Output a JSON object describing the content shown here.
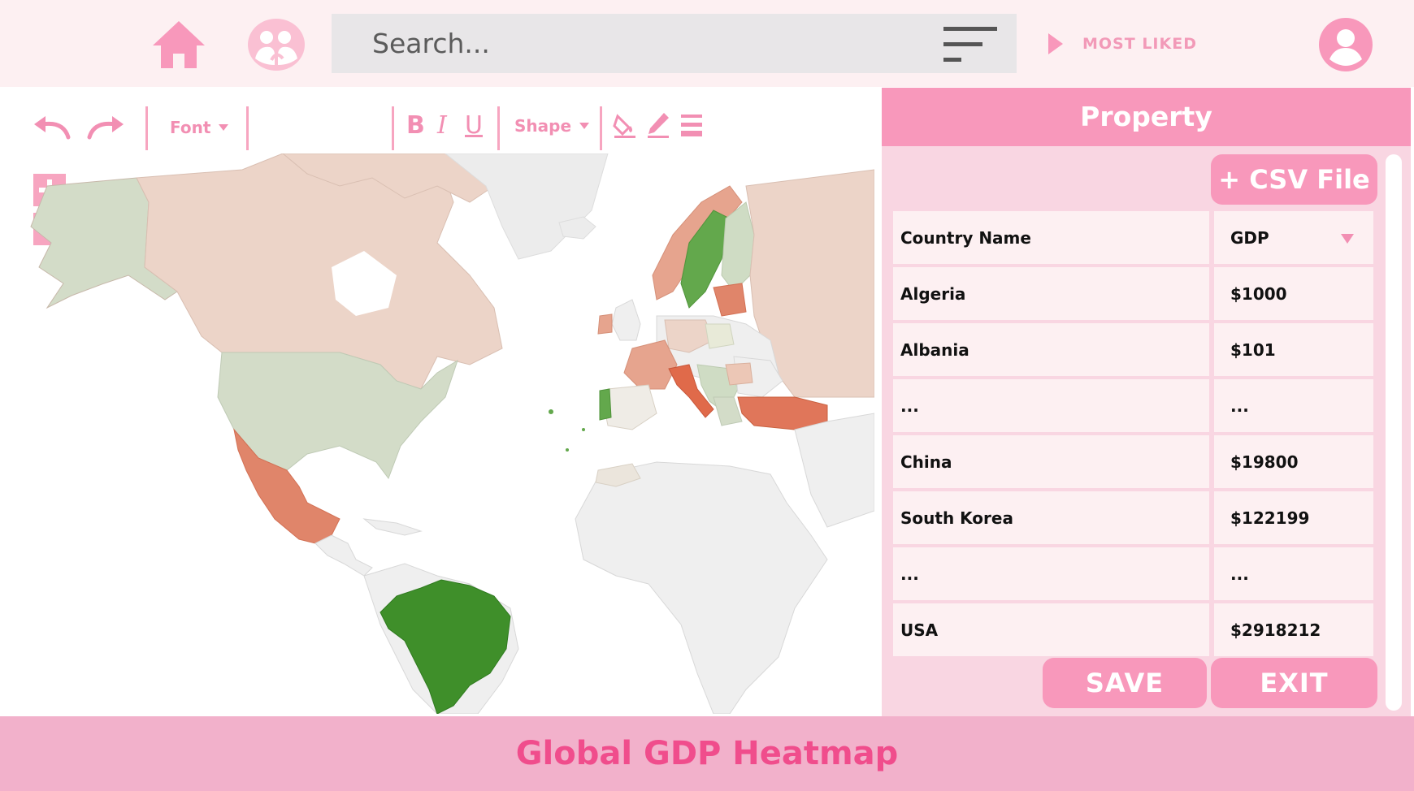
{
  "colors": {
    "accent": "#f898bb",
    "accent_dark": "#f04d8c",
    "topbar_bg": "#fdf0f2",
    "panel_bg": "#f9d6e2",
    "footer_bg": "#f2b1cb"
  },
  "topbar": {
    "home_icon": "home-icon",
    "community_icon": "community-icon",
    "search_placeholder": "Search...",
    "filter_icon": "filter-icon",
    "most_liked_label": "MOST LIKED",
    "profile_icon": "user-profile-icon"
  },
  "toolbar": {
    "undo_icon": "undo-icon",
    "redo_icon": "redo-icon",
    "font_label": "Font",
    "bold_label": "B",
    "italic_label": "I",
    "underline_label": "U",
    "shape_label": "Shape",
    "fill_icon": "paint-bucket-icon",
    "pen_icon": "pen-icon",
    "line_icon": "line-weight-icon",
    "shapes": [
      "triangle-icon",
      "heart-icon",
      "square-icon",
      "circle-icon",
      "map-pin-icon",
      "pin-off-icon",
      "star-icon",
      "banner-icon"
    ]
  },
  "map": {
    "zoom_in_icon": "plus-icon",
    "zoom_out_icon": "minus-icon",
    "heat_colors": {
      "high": "#3f8f2a",
      "mid_high": "#cfdcc4",
      "neutral": "#e8e6e3",
      "mid_low": "#ecc7b6",
      "low": "#e0765a",
      "no_data": "#efefef"
    }
  },
  "panel": {
    "title": "Property",
    "csv_button": "+ CSV File",
    "table": {
      "headers": [
        "Country Name",
        "GDP"
      ],
      "rows": [
        [
          "Algeria",
          "$1000"
        ],
        [
          "Albania",
          "$101"
        ],
        [
          "...",
          "..."
        ],
        [
          "China",
          "$19800"
        ],
        [
          "South Korea",
          "$122199"
        ],
        [
          "...",
          "..."
        ],
        [
          "USA",
          "$2918212"
        ]
      ]
    },
    "save_button": "SAVE",
    "exit_button": "EXIT"
  },
  "footer": {
    "title": "Global GDP Heatmap"
  }
}
